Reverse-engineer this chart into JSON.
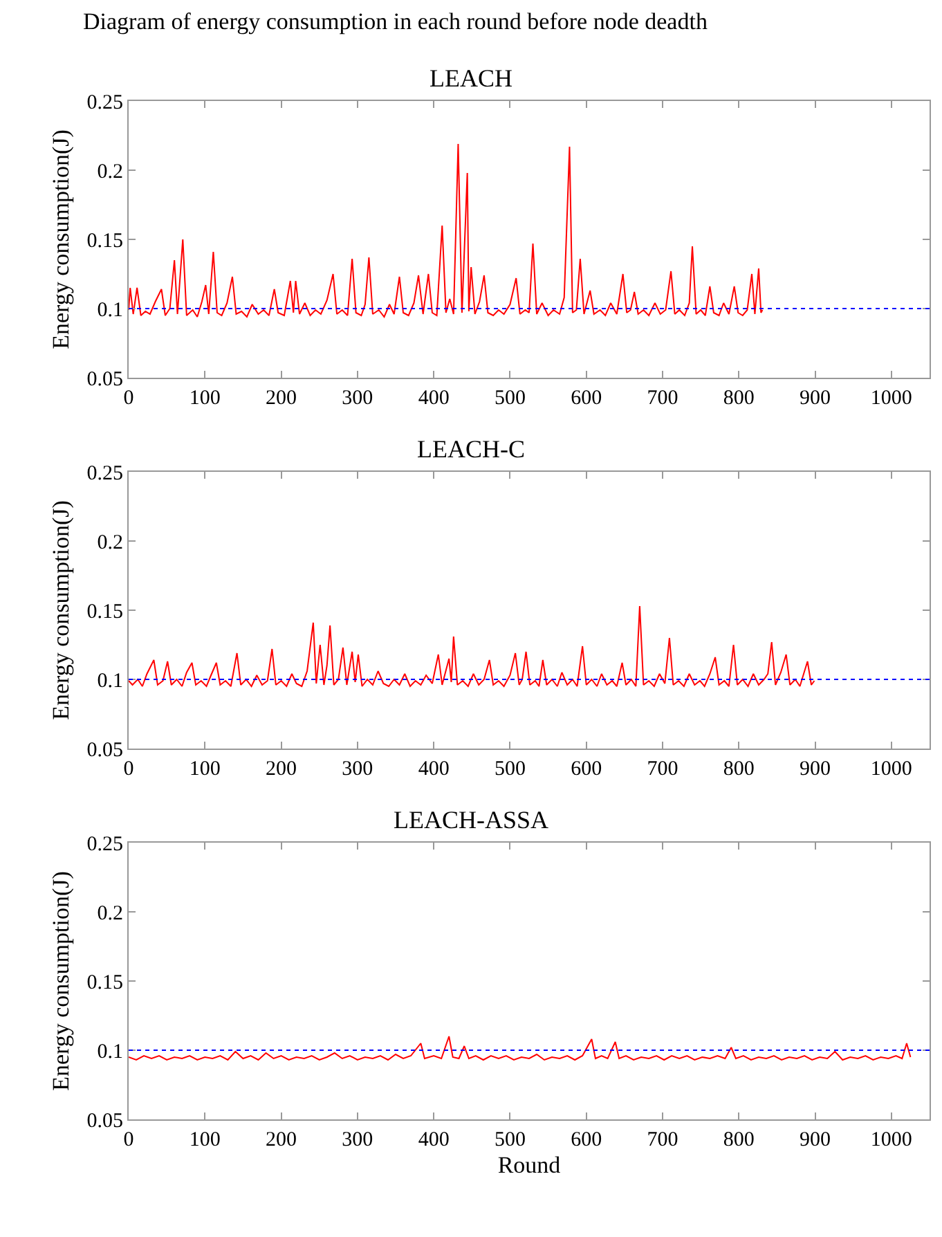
{
  "chart_data": [
    {
      "type": "line",
      "title": "LEACH",
      "ylabel": "Energy consumption(J)",
      "annotations": [
        "Diagram of energy consumption in each round before node deadth"
      ],
      "color": "#ff0000",
      "xlim": [
        0,
        1050
      ],
      "xticks": [
        0,
        100,
        200,
        300,
        400,
        500,
        600,
        700,
        800,
        900,
        1000
      ],
      "ylim": [
        0.05,
        0.25
      ],
      "yticks": [
        0.05,
        0.1,
        0.15,
        0.2,
        0.25
      ],
      "ref_lines": [
        {
          "axis": "y",
          "value": 0.1,
          "color": "#0000ff",
          "line_style": "dashed"
        }
      ],
      "x": [
        0,
        2,
        6,
        11,
        16,
        22,
        28,
        35,
        43,
        48,
        54,
        60,
        64,
        71,
        76,
        84,
        90,
        96,
        101,
        105,
        111,
        116,
        122,
        129,
        136,
        141,
        148,
        155,
        162,
        170,
        177,
        184,
        191,
        196,
        204,
        212,
        216,
        219,
        224,
        231,
        238,
        245,
        252,
        260,
        268,
        273,
        280,
        287,
        293,
        298,
        305,
        310,
        315,
        320,
        328,
        335,
        342,
        348,
        355,
        360,
        367,
        374,
        380,
        386,
        393,
        398,
        404,
        411,
        416,
        421,
        426,
        432,
        437,
        444,
        446,
        449,
        454,
        460,
        466,
        471,
        478,
        485,
        492,
        500,
        508,
        513,
        520,
        525,
        530,
        535,
        542,
        550,
        557,
        565,
        571,
        578,
        582,
        587,
        592,
        597,
        605,
        610,
        618,
        625,
        632,
        640,
        648,
        653,
        658,
        663,
        668,
        675,
        682,
        690,
        697,
        704,
        711,
        716,
        722,
        729,
        735,
        739,
        744,
        750,
        756,
        762,
        767,
        774,
        780,
        787,
        794,
        799,
        805,
        811,
        817,
        821,
        826,
        829,
        831
      ],
      "values": [
        0.099,
        0.115,
        0.096,
        0.115,
        0.095,
        0.098,
        0.096,
        0.105,
        0.114,
        0.095,
        0.1,
        0.135,
        0.096,
        0.15,
        0.095,
        0.099,
        0.094,
        0.105,
        0.117,
        0.096,
        0.141,
        0.097,
        0.095,
        0.104,
        0.123,
        0.096,
        0.098,
        0.094,
        0.103,
        0.096,
        0.099,
        0.095,
        0.114,
        0.097,
        0.095,
        0.12,
        0.097,
        0.12,
        0.096,
        0.104,
        0.095,
        0.099,
        0.096,
        0.106,
        0.125,
        0.096,
        0.099,
        0.095,
        0.136,
        0.097,
        0.095,
        0.103,
        0.137,
        0.096,
        0.099,
        0.094,
        0.103,
        0.096,
        0.123,
        0.097,
        0.095,
        0.104,
        0.124,
        0.096,
        0.125,
        0.097,
        0.095,
        0.16,
        0.097,
        0.107,
        0.096,
        0.219,
        0.097,
        0.198,
        0.098,
        0.13,
        0.096,
        0.105,
        0.124,
        0.097,
        0.095,
        0.099,
        0.096,
        0.103,
        0.122,
        0.096,
        0.099,
        0.097,
        0.147,
        0.096,
        0.104,
        0.095,
        0.099,
        0.096,
        0.108,
        0.217,
        0.097,
        0.099,
        0.136,
        0.096,
        0.113,
        0.096,
        0.099,
        0.095,
        0.104,
        0.096,
        0.125,
        0.097,
        0.099,
        0.112,
        0.096,
        0.099,
        0.095,
        0.104,
        0.096,
        0.099,
        0.127,
        0.096,
        0.099,
        0.095,
        0.104,
        0.145,
        0.096,
        0.099,
        0.095,
        0.116,
        0.097,
        0.095,
        0.104,
        0.096,
        0.116,
        0.097,
        0.095,
        0.099,
        0.125,
        0.096,
        0.129,
        0.097,
        0.099
      ]
    },
    {
      "type": "line",
      "title": "LEACH-C",
      "ylabel": "Energy consumption(J)",
      "color": "#ff0000",
      "xlim": [
        0,
        1050
      ],
      "xticks": [
        0,
        100,
        200,
        300,
        400,
        500,
        600,
        700,
        800,
        900,
        1000
      ],
      "ylim": [
        0.05,
        0.25
      ],
      "yticks": [
        0.05,
        0.1,
        0.15,
        0.2,
        0.25
      ],
      "ref_lines": [
        {
          "axis": "y",
          "value": 0.1,
          "color": "#0000ff",
          "line_style": "dashed"
        }
      ],
      "x": [
        0,
        5,
        12,
        18,
        24,
        33,
        38,
        45,
        51,
        56,
        63,
        70,
        76,
        83,
        88,
        95,
        102,
        108,
        115,
        120,
        127,
        134,
        142,
        147,
        154,
        161,
        168,
        175,
        182,
        188,
        193,
        200,
        207,
        214,
        220,
        227,
        234,
        242,
        246,
        251,
        256,
        260,
        264,
        269,
        275,
        281,
        286,
        293,
        297,
        301,
        306,
        313,
        320,
        327,
        334,
        341,
        348,
        355,
        362,
        369,
        376,
        383,
        390,
        398,
        406,
        411,
        420,
        423,
        426,
        431,
        438,
        445,
        452,
        459,
        466,
        473,
        478,
        485,
        492,
        500,
        507,
        512,
        516,
        521,
        526,
        533,
        538,
        543,
        548,
        555,
        562,
        568,
        575,
        582,
        588,
        595,
        600,
        607,
        614,
        620,
        627,
        634,
        640,
        647,
        652,
        659,
        665,
        670,
        675,
        682,
        689,
        696,
        703,
        709,
        714,
        721,
        728,
        735,
        742,
        749,
        755,
        762,
        769,
        774,
        781,
        787,
        793,
        798,
        805,
        812,
        819,
        826,
        833,
        838,
        843,
        848,
        855,
        862,
        867,
        874,
        880,
        885,
        890,
        895,
        899
      ],
      "values": [
        0.099,
        0.096,
        0.1,
        0.095,
        0.104,
        0.114,
        0.096,
        0.099,
        0.113,
        0.096,
        0.1,
        0.095,
        0.105,
        0.112,
        0.096,
        0.099,
        0.095,
        0.103,
        0.112,
        0.096,
        0.099,
        0.095,
        0.119,
        0.096,
        0.1,
        0.095,
        0.103,
        0.096,
        0.099,
        0.122,
        0.096,
        0.099,
        0.095,
        0.104,
        0.097,
        0.095,
        0.106,
        0.141,
        0.097,
        0.125,
        0.096,
        0.11,
        0.139,
        0.096,
        0.1,
        0.123,
        0.096,
        0.12,
        0.098,
        0.118,
        0.095,
        0.1,
        0.096,
        0.106,
        0.097,
        0.095,
        0.1,
        0.096,
        0.104,
        0.095,
        0.099,
        0.096,
        0.103,
        0.097,
        0.118,
        0.096,
        0.115,
        0.098,
        0.131,
        0.096,
        0.099,
        0.095,
        0.104,
        0.096,
        0.1,
        0.114,
        0.096,
        0.099,
        0.095,
        0.103,
        0.119,
        0.096,
        0.1,
        0.12,
        0.096,
        0.099,
        0.095,
        0.114,
        0.096,
        0.1,
        0.095,
        0.105,
        0.096,
        0.1,
        0.095,
        0.124,
        0.096,
        0.1,
        0.095,
        0.104,
        0.096,
        0.099,
        0.095,
        0.112,
        0.096,
        0.1,
        0.095,
        0.153,
        0.096,
        0.099,
        0.095,
        0.104,
        0.097,
        0.13,
        0.096,
        0.099,
        0.095,
        0.104,
        0.096,
        0.099,
        0.095,
        0.104,
        0.116,
        0.096,
        0.099,
        0.095,
        0.125,
        0.096,
        0.1,
        0.095,
        0.104,
        0.096,
        0.1,
        0.104,
        0.127,
        0.096,
        0.105,
        0.118,
        0.096,
        0.1,
        0.095,
        0.104,
        0.113,
        0.096,
        0.099
      ]
    },
    {
      "type": "line",
      "title": "LEACH-ASSA",
      "xlabel": "Round",
      "ylabel": "Energy consumption(J)",
      "color": "#ff0000",
      "xlim": [
        0,
        1050
      ],
      "xticks": [
        0,
        100,
        200,
        300,
        400,
        500,
        600,
        700,
        800,
        900,
        1000
      ],
      "ylim": [
        0.05,
        0.25
      ],
      "yticks": [
        0.05,
        0.1,
        0.15,
        0.2,
        0.25
      ],
      "ref_lines": [
        {
          "axis": "y",
          "value": 0.1,
          "color": "#0000ff",
          "line_style": "dashed"
        }
      ],
      "x": [
        0,
        10,
        20,
        30,
        40,
        50,
        60,
        70,
        80,
        90,
        100,
        110,
        120,
        130,
        140,
        150,
        160,
        170,
        180,
        190,
        200,
        210,
        220,
        230,
        240,
        250,
        260,
        270,
        280,
        290,
        300,
        310,
        320,
        330,
        340,
        350,
        360,
        370,
        383,
        388,
        400,
        410,
        420,
        425,
        433,
        440,
        446,
        455,
        465,
        475,
        485,
        495,
        505,
        515,
        525,
        535,
        545,
        555,
        565,
        575,
        585,
        595,
        607,
        612,
        620,
        628,
        638,
        643,
        652,
        662,
        672,
        682,
        692,
        702,
        712,
        722,
        732,
        742,
        752,
        762,
        772,
        782,
        790,
        796,
        806,
        816,
        826,
        836,
        846,
        856,
        866,
        876,
        886,
        896,
        906,
        916,
        926,
        936,
        946,
        956,
        966,
        976,
        986,
        996,
        1006,
        1014,
        1020,
        1025
      ],
      "values": [
        0.095,
        0.093,
        0.096,
        0.094,
        0.096,
        0.093,
        0.095,
        0.094,
        0.096,
        0.093,
        0.095,
        0.094,
        0.096,
        0.093,
        0.099,
        0.094,
        0.096,
        0.093,
        0.098,
        0.094,
        0.096,
        0.093,
        0.095,
        0.094,
        0.096,
        0.093,
        0.095,
        0.098,
        0.094,
        0.096,
        0.093,
        0.095,
        0.094,
        0.096,
        0.093,
        0.097,
        0.094,
        0.096,
        0.105,
        0.094,
        0.096,
        0.094,
        0.11,
        0.095,
        0.094,
        0.103,
        0.094,
        0.096,
        0.093,
        0.096,
        0.094,
        0.096,
        0.093,
        0.095,
        0.094,
        0.097,
        0.093,
        0.095,
        0.094,
        0.096,
        0.093,
        0.096,
        0.108,
        0.094,
        0.096,
        0.094,
        0.106,
        0.094,
        0.096,
        0.093,
        0.095,
        0.094,
        0.096,
        0.093,
        0.096,
        0.094,
        0.096,
        0.093,
        0.095,
        0.094,
        0.096,
        0.094,
        0.102,
        0.094,
        0.096,
        0.093,
        0.095,
        0.094,
        0.096,
        0.093,
        0.095,
        0.094,
        0.096,
        0.093,
        0.095,
        0.094,
        0.099,
        0.093,
        0.095,
        0.094,
        0.096,
        0.093,
        0.095,
        0.094,
        0.096,
        0.094,
        0.105,
        0.095
      ]
    }
  ]
}
